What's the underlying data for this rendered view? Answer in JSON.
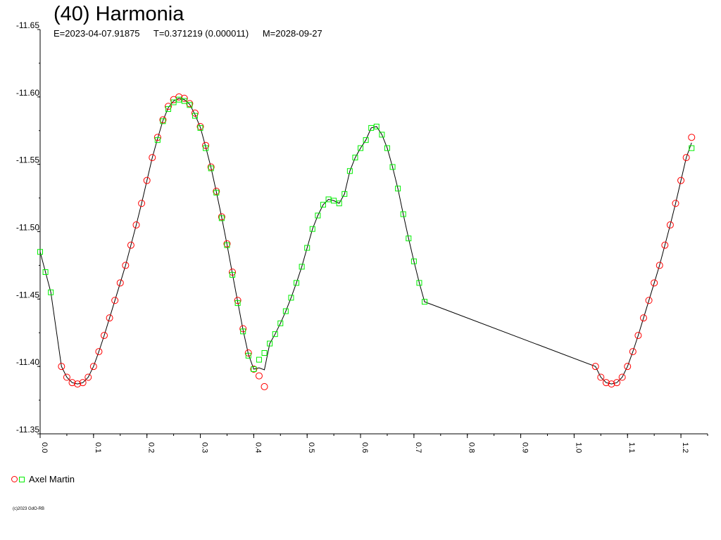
{
  "chart_data": {
    "type": "scatter",
    "title": "(40) Harmonia",
    "info": {
      "epoch": "E=2023-04-07.91875",
      "period": "T=0.371219 (0.000011)",
      "modified": "M=2028-09-27"
    },
    "xlabel": "",
    "ylabel": "",
    "xlim": [
      0.0,
      1.25
    ],
    "ylim": [
      -11.65,
      -11.35
    ],
    "y_inverted": true,
    "x_ticks": [
      "0.0",
      "0.1",
      "0.2",
      "0.3",
      "0.4",
      "0.5",
      "0.6",
      "0.7",
      "0.8",
      "0.9",
      "1.0",
      "1.1",
      "1.2"
    ],
    "y_ticks": [
      "-11.65",
      "-11.60",
      "-11.55",
      "-11.50",
      "-11.45",
      "-11.40",
      "-11.35"
    ],
    "grid": false,
    "legend_position": "bottom-left",
    "legend": {
      "label": "Axel Martin",
      "symbols": [
        "red-circle",
        "green-square"
      ]
    },
    "colors": {
      "series_circle": "#ff0000",
      "series_square": "#00ee00",
      "fit_line": "#000000",
      "axis": "#000000"
    },
    "series": [
      {
        "name": "Axel Martin",
        "marker": "circle",
        "color": "#ff0000",
        "points": [
          [
            0.04,
            -11.4
          ],
          [
            0.05,
            -11.392
          ],
          [
            0.06,
            -11.388
          ],
          [
            0.07,
            -11.387
          ],
          [
            0.08,
            -11.388
          ],
          [
            0.09,
            -11.392
          ],
          [
            0.1,
            -11.4
          ],
          [
            0.11,
            -11.411
          ],
          [
            0.12,
            -11.423
          ],
          [
            0.13,
            -11.436
          ],
          [
            0.14,
            -11.449
          ],
          [
            0.15,
            -11.462
          ],
          [
            0.16,
            -11.475
          ],
          [
            0.17,
            -11.49
          ],
          [
            0.18,
            -11.505
          ],
          [
            0.19,
            -11.521
          ],
          [
            0.2,
            -11.538
          ],
          [
            0.21,
            -11.555
          ],
          [
            0.22,
            -11.57
          ],
          [
            0.23,
            -11.583
          ],
          [
            0.24,
            -11.593
          ],
          [
            0.25,
            -11.598
          ],
          [
            0.26,
            -11.6
          ],
          [
            0.27,
            -11.599
          ],
          [
            0.28,
            -11.595
          ],
          [
            0.29,
            -11.588
          ],
          [
            0.3,
            -11.578
          ],
          [
            0.31,
            -11.564
          ],
          [
            0.32,
            -11.548
          ],
          [
            0.33,
            -11.53
          ],
          [
            0.34,
            -11.511
          ],
          [
            0.35,
            -11.491
          ],
          [
            0.36,
            -11.47
          ],
          [
            0.37,
            -11.449
          ],
          [
            0.38,
            -11.428
          ],
          [
            0.39,
            -11.41
          ],
          [
            0.4,
            -11.398
          ],
          [
            0.41,
            -11.393
          ],
          [
            0.42,
            -11.385
          ],
          [
            1.04,
            -11.4
          ],
          [
            1.05,
            -11.392
          ],
          [
            1.06,
            -11.388
          ],
          [
            1.07,
            -11.387
          ],
          [
            1.08,
            -11.388
          ],
          [
            1.09,
            -11.392
          ],
          [
            1.1,
            -11.4
          ],
          [
            1.11,
            -11.411
          ],
          [
            1.12,
            -11.423
          ],
          [
            1.13,
            -11.436
          ],
          [
            1.14,
            -11.449
          ],
          [
            1.15,
            -11.462
          ],
          [
            1.16,
            -11.475
          ],
          [
            1.17,
            -11.49
          ],
          [
            1.18,
            -11.505
          ],
          [
            1.19,
            -11.521
          ],
          [
            1.2,
            -11.538
          ],
          [
            1.21,
            -11.555
          ],
          [
            1.22,
            -11.57
          ]
        ]
      },
      {
        "name": "Axel Martin",
        "marker": "square",
        "color": "#00ee00",
        "points": [
          [
            0.0,
            -11.485
          ],
          [
            0.01,
            -11.47
          ],
          [
            0.02,
            -11.455
          ],
          [
            0.22,
            -11.568
          ],
          [
            0.23,
            -11.582
          ],
          [
            0.24,
            -11.591
          ],
          [
            0.25,
            -11.596
          ],
          [
            0.26,
            -11.598
          ],
          [
            0.27,
            -11.597
          ],
          [
            0.28,
            -11.594
          ],
          [
            0.29,
            -11.586
          ],
          [
            0.3,
            -11.577
          ],
          [
            0.31,
            -11.562
          ],
          [
            0.32,
            -11.547
          ],
          [
            0.33,
            -11.529
          ],
          [
            0.34,
            -11.51
          ],
          [
            0.35,
            -11.49
          ],
          [
            0.36,
            -11.468
          ],
          [
            0.37,
            -11.447
          ],
          [
            0.38,
            -11.426
          ],
          [
            0.39,
            -11.408
          ],
          [
            0.4,
            -11.398
          ],
          [
            0.41,
            -11.405
          ],
          [
            0.42,
            -11.41
          ],
          [
            0.43,
            -11.417
          ],
          [
            0.44,
            -11.424
          ],
          [
            0.45,
            -11.432
          ],
          [
            0.46,
            -11.441
          ],
          [
            0.47,
            -11.451
          ],
          [
            0.48,
            -11.462
          ],
          [
            0.49,
            -11.474
          ],
          [
            0.5,
            -11.488
          ],
          [
            0.51,
            -11.502
          ],
          [
            0.52,
            -11.512
          ],
          [
            0.53,
            -11.52
          ],
          [
            0.54,
            -11.524
          ],
          [
            0.55,
            -11.523
          ],
          [
            0.56,
            -11.521
          ],
          [
            0.57,
            -11.528
          ],
          [
            0.58,
            -11.545
          ],
          [
            0.59,
            -11.555
          ],
          [
            0.6,
            -11.562
          ],
          [
            0.61,
            -11.568
          ],
          [
            0.62,
            -11.577
          ],
          [
            0.63,
            -11.578
          ],
          [
            0.64,
            -11.572
          ],
          [
            0.65,
            -11.562
          ],
          [
            0.66,
            -11.548
          ],
          [
            0.67,
            -11.532
          ],
          [
            0.68,
            -11.513
          ],
          [
            0.69,
            -11.495
          ],
          [
            0.7,
            -11.478
          ],
          [
            0.71,
            -11.462
          ],
          [
            0.72,
            -11.448
          ],
          [
            1.22,
            -11.562
          ]
        ]
      }
    ]
  },
  "footer": {
    "copyright": "(c)2023 GdO-RB"
  }
}
